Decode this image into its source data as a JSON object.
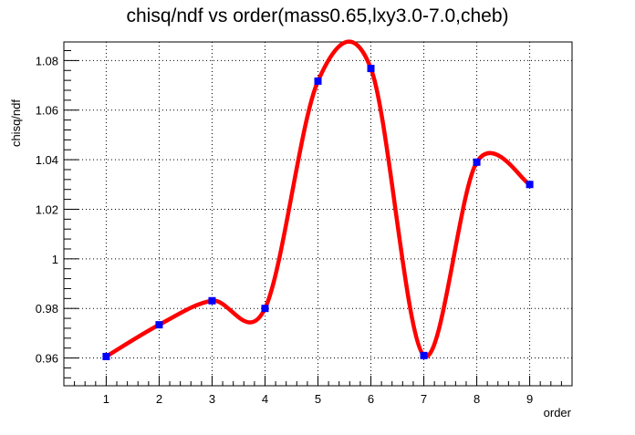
{
  "chart_data": {
    "type": "line",
    "title": "chisq/ndf vs order(mass0.65,lxy3.0-7.0,cheb)",
    "xlabel": "order",
    "ylabel": "chisq/ndf",
    "xlim": [
      0.2,
      9.8
    ],
    "ylim": [
      0.9488,
      1.0875
    ],
    "x_ticks": [
      1,
      2,
      3,
      4,
      5,
      6,
      7,
      8,
      9
    ],
    "y_ticks": [
      0.96,
      0.98,
      1.0,
      1.02,
      1.04,
      1.06,
      1.08
    ],
    "y_tick_labels": [
      "0.96",
      "0.98",
      "1",
      "1.02",
      "1.04",
      "1.06",
      "1.08"
    ],
    "grid": true,
    "series": [
      {
        "marker_color": "#0000ff",
        "line_color": "#ff0000",
        "x": [
          1,
          2,
          3,
          4,
          5,
          6,
          7,
          8,
          9
        ],
        "y": [
          0.9606,
          0.9734,
          0.9831,
          0.98,
          1.0717,
          1.0768,
          0.961,
          1.039,
          1.03
        ]
      }
    ]
  }
}
